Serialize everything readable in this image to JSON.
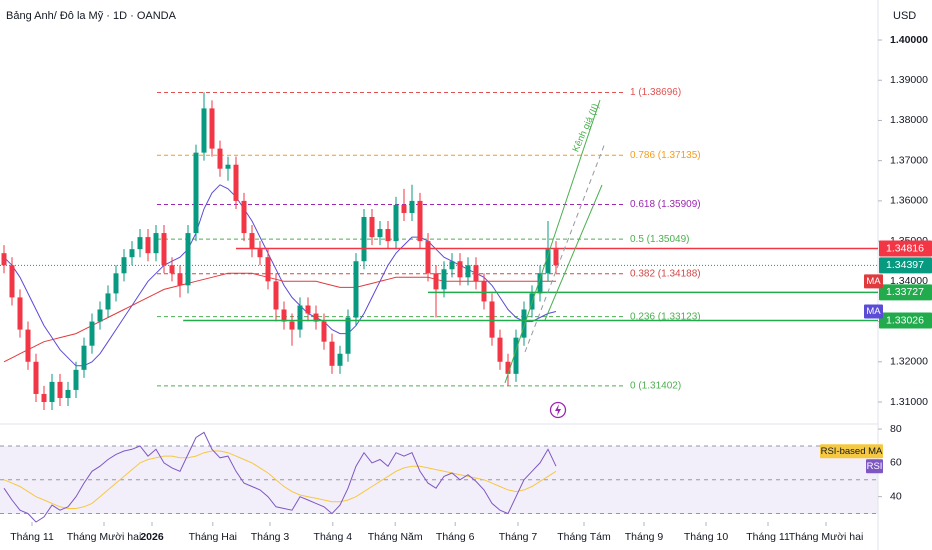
{
  "chart_data": {
    "type": "candlestick",
    "title": "Bảng Anh/ Đô la Mỹ · 1D · OANDA",
    "currency": "USD",
    "xlim": [
      -0.5,
      109.25
    ],
    "xticks": [
      {
        "value": 3.5,
        "label": "Tháng 11"
      },
      {
        "value": 12.5,
        "label": "Tháng Mười hai"
      },
      {
        "value": 18.5,
        "label": "2026",
        "bold": true
      },
      {
        "value": 26.1,
        "label": "Tháng Hai"
      },
      {
        "value": 33.25,
        "label": "Tháng 3"
      },
      {
        "value": 41.1,
        "label": "Tháng 4"
      },
      {
        "value": 48.9,
        "label": "Tháng Năm"
      },
      {
        "value": 56.4,
        "label": "Tháng 6"
      },
      {
        "value": 64.25,
        "label": "Tháng 7"
      },
      {
        "value": 72.5,
        "label": "Tháng Tám"
      },
      {
        "value": 80,
        "label": "Tháng 9"
      },
      {
        "value": 87.75,
        "label": "Tháng 10"
      },
      {
        "value": 95.5,
        "label": "Tháng 11"
      },
      {
        "value": 102.75,
        "label": "Tháng Mười hai"
      }
    ],
    "ylim": [
      1.30453,
      1.40995
    ],
    "yticks": [
      {
        "value": 1.4,
        "label": "1.40000",
        "bold": true
      },
      {
        "value": 1.39,
        "label": "1.39000"
      },
      {
        "value": 1.38,
        "label": "1.38000"
      },
      {
        "value": 1.37,
        "label": "1.37000"
      },
      {
        "value": 1.36,
        "label": "1.36000"
      },
      {
        "value": 1.35,
        "label": "1.35000"
      },
      {
        "value": 1.34,
        "label": "1.34000"
      },
      {
        "value": 1.33,
        "label": "1.33000"
      },
      {
        "value": 1.32,
        "label": "1.32000"
      },
      {
        "value": 1.31,
        "label": "1.31000"
      }
    ],
    "up_color": "#089981",
    "down_color": "#f23645",
    "x": [
      0,
      1,
      2,
      3,
      4,
      5,
      6,
      7,
      8,
      9,
      10,
      11,
      12,
      13,
      14,
      15,
      16,
      17,
      18,
      19,
      20,
      21,
      22,
      23,
      24,
      25,
      26,
      27,
      28,
      29,
      30,
      31,
      32,
      33,
      34,
      35,
      36,
      37,
      38,
      39,
      40,
      41,
      42,
      43,
      44,
      45,
      46,
      47,
      48,
      49,
      50,
      51,
      52,
      53,
      54,
      55,
      56,
      57,
      58,
      59,
      60,
      61,
      62,
      63,
      64,
      65,
      66,
      67,
      68,
      69
    ],
    "open": [
      1.347,
      1.344,
      1.336,
      1.328,
      1.32,
      1.312,
      1.31,
      1.315,
      1.311,
      1.313,
      1.318,
      1.324,
      1.33,
      1.333,
      1.337,
      1.342,
      1.346,
      1.348,
      1.351,
      1.347,
      1.352,
      1.344,
      1.342,
      1.339,
      1.352,
      1.372,
      1.383,
      1.373,
      1.368,
      1.369,
      1.36,
      1.352,
      1.348,
      1.346,
      1.34,
      1.333,
      1.33,
      1.328,
      1.334,
      1.332,
      1.33,
      1.325,
      1.319,
      1.322,
      1.331,
      1.345,
      1.356,
      1.351,
      1.353,
      1.35,
      1.359,
      1.357,
      1.36,
      1.35,
      1.342,
      1.338,
      1.343,
      1.345,
      1.341,
      1.344,
      1.34,
      1.335,
      1.326,
      1.32,
      1.317,
      1.326,
      1.333,
      1.337,
      1.342,
      1.348
    ],
    "high": [
      1.349,
      1.346,
      1.338,
      1.33,
      1.322,
      1.314,
      1.317,
      1.317,
      1.315,
      1.32,
      1.326,
      1.332,
      1.335,
      1.339,
      1.344,
      1.348,
      1.35,
      1.353,
      1.353,
      1.354,
      1.354,
      1.346,
      1.344,
      1.354,
      1.374,
      1.387,
      1.385,
      1.375,
      1.371,
      1.371,
      1.362,
      1.354,
      1.35,
      1.348,
      1.342,
      1.335,
      1.332,
      1.336,
      1.336,
      1.334,
      1.332,
      1.327,
      1.324,
      1.333,
      1.347,
      1.358,
      1.358,
      1.355,
      1.355,
      1.361,
      1.363,
      1.364,
      1.362,
      1.352,
      1.344,
      1.345,
      1.347,
      1.347,
      1.346,
      1.346,
      1.342,
      1.337,
      1.328,
      1.322,
      1.328,
      1.335,
      1.339,
      1.344,
      1.355,
      1.35
    ],
    "low": [
      1.342,
      1.334,
      1.326,
      1.318,
      1.31,
      1.308,
      1.308,
      1.309,
      1.309,
      1.311,
      1.316,
      1.322,
      1.328,
      1.331,
      1.335,
      1.34,
      1.344,
      1.346,
      1.345,
      1.345,
      1.342,
      1.34,
      1.336,
      1.337,
      1.35,
      1.37,
      1.371,
      1.366,
      1.365,
      1.358,
      1.35,
      1.346,
      1.344,
      1.338,
      1.33,
      1.328,
      1.324,
      1.326,
      1.33,
      1.328,
      1.323,
      1.317,
      1.317,
      1.32,
      1.329,
      1.343,
      1.349,
      1.349,
      1.348,
      1.348,
      1.355,
      1.355,
      1.348,
      1.34,
      1.331,
      1.336,
      1.341,
      1.339,
      1.339,
      1.338,
      1.333,
      1.324,
      1.318,
      1.314,
      1.315,
      1.324,
      1.331,
      1.335,
      1.34,
      1.342
    ],
    "close": [
      1.344,
      1.336,
      1.328,
      1.32,
      1.312,
      1.31,
      1.315,
      1.311,
      1.313,
      1.318,
      1.324,
      1.33,
      1.333,
      1.337,
      1.342,
      1.346,
      1.348,
      1.351,
      1.347,
      1.352,
      1.344,
      1.342,
      1.339,
      1.352,
      1.372,
      1.383,
      1.373,
      1.368,
      1.369,
      1.36,
      1.352,
      1.348,
      1.346,
      1.34,
      1.333,
      1.33,
      1.328,
      1.334,
      1.332,
      1.33,
      1.325,
      1.319,
      1.322,
      1.331,
      1.345,
      1.356,
      1.351,
      1.353,
      1.35,
      1.359,
      1.357,
      1.36,
      1.35,
      1.342,
      1.338,
      1.343,
      1.345,
      1.341,
      1.344,
      1.34,
      1.335,
      1.326,
      1.32,
      1.317,
      1.326,
      1.333,
      1.337,
      1.342,
      1.348,
      1.34397
    ],
    "series": [
      {
        "name": "MA",
        "color": "#5b4bd6",
        "values": [
          1.346,
          1.344,
          1.341,
          1.337,
          1.333,
          1.329,
          1.326,
          1.323,
          1.321,
          1.319,
          1.319,
          1.32,
          1.322,
          1.325,
          1.328,
          1.331,
          1.334,
          1.337,
          1.34,
          1.342,
          1.344,
          1.345,
          1.346,
          1.348,
          1.352,
          1.358,
          1.362,
          1.364,
          1.363,
          1.361,
          1.358,
          1.355,
          1.351,
          1.347,
          1.343,
          1.339,
          1.336,
          1.334,
          1.332,
          1.331,
          1.33,
          1.328,
          1.327,
          1.327,
          1.329,
          1.332,
          1.336,
          1.34,
          1.344,
          1.347,
          1.349,
          1.351,
          1.351,
          1.35,
          1.348,
          1.346,
          1.345,
          1.344,
          1.343,
          1.342,
          1.341,
          1.339,
          1.336,
          1.333,
          1.331,
          1.33,
          1.33,
          1.331,
          1.332,
          1.3325
        ]
      },
      {
        "name": "MA",
        "color": "#e03a3e",
        "values": [
          1.32,
          1.321,
          1.322,
          1.323,
          1.324,
          1.325,
          1.3255,
          1.326,
          1.3265,
          1.327,
          1.328,
          1.329,
          1.33,
          1.331,
          1.332,
          1.333,
          1.334,
          1.335,
          1.336,
          1.337,
          1.338,
          1.3385,
          1.339,
          1.3395,
          1.34,
          1.3405,
          1.341,
          1.3415,
          1.342,
          1.342,
          1.342,
          1.342,
          1.3415,
          1.341,
          1.3405,
          1.34,
          1.34,
          1.34,
          1.34,
          1.34,
          1.3395,
          1.339,
          1.3385,
          1.3385,
          1.3385,
          1.339,
          1.3395,
          1.34,
          1.3405,
          1.341,
          1.341,
          1.341,
          1.341,
          1.341,
          1.3405,
          1.34,
          1.34,
          1.34,
          1.34,
          1.34,
          1.34,
          1.34,
          1.34,
          1.34,
          1.34,
          1.34,
          1.34,
          1.34,
          1.34,
          1.34
        ]
      }
    ],
    "fib": [
      {
        "value": 1.38696,
        "label": "1 (1.38696)",
        "color": "#e05252"
      },
      {
        "value": 1.37135,
        "label": "0.786 (1.37135)",
        "color": "#f59c1a"
      },
      {
        "value": 1.35909,
        "label": "0.618 (1.35909)",
        "color": "#9c27b0"
      },
      {
        "value": 1.35049,
        "label": "0.5 (1.35049)",
        "color": "#4caf50"
      },
      {
        "value": 1.34188,
        "label": "0.382 (1.34188)",
        "color": "#d04848"
      },
      {
        "value": 1.33123,
        "label": "0.236 (1.33123)",
        "color": "#4caf50"
      },
      {
        "value": 1.31402,
        "label": "0 (1.31402)",
        "color": "#4caf50"
      }
    ],
    "hlines": [
      {
        "value": 1.34816,
        "color": "#f23645",
        "from": 29
      },
      {
        "value": 1.33727,
        "color": "#22ab4c",
        "from": 53
      },
      {
        "value": 1.33026,
        "color": "#22ab4c",
        "from": 22.4
      }
    ],
    "annotation": "Kênh giá (II)",
    "rsi": {
      "ylim": [
        25,
        83
      ],
      "yticks": [
        80,
        60,
        40
      ],
      "levels": [
        70,
        50,
        30
      ],
      "series": [
        {
          "name": "RSI",
          "color": "#7e57c2",
          "values": [
            45,
            38,
            32,
            30,
            25,
            28,
            35,
            32,
            34,
            40,
            48,
            55,
            58,
            62,
            65,
            67,
            68,
            70,
            64,
            68,
            60,
            57,
            55,
            65,
            75,
            78,
            68,
            63,
            64,
            55,
            48,
            46,
            44,
            40,
            34,
            33,
            32,
            40,
            38,
            36,
            34,
            30,
            35,
            45,
            58,
            66,
            60,
            62,
            58,
            66,
            64,
            66,
            55,
            48,
            45,
            52,
            54,
            50,
            53,
            49,
            44,
            36,
            32,
            30,
            40,
            50,
            55,
            60,
            68,
            58
          ]
        },
        {
          "name": "RSI-based MA",
          "color": "#f5c842",
          "values": [
            50,
            48,
            46,
            43,
            40,
            38,
            36,
            34,
            33,
            33,
            34,
            36,
            40,
            44,
            48,
            52,
            56,
            60,
            62,
            63,
            64,
            64,
            63,
            63,
            64,
            66,
            67,
            67,
            66,
            64,
            62,
            60,
            57,
            54,
            50,
            46,
            43,
            41,
            40,
            39,
            38,
            37,
            37,
            38,
            40,
            43,
            46,
            49,
            52,
            55,
            57,
            58,
            58,
            57,
            56,
            55,
            54,
            53,
            52,
            51,
            50,
            48,
            46,
            44,
            43,
            44,
            46,
            49,
            52,
            55
          ]
        }
      ]
    }
  }
}
